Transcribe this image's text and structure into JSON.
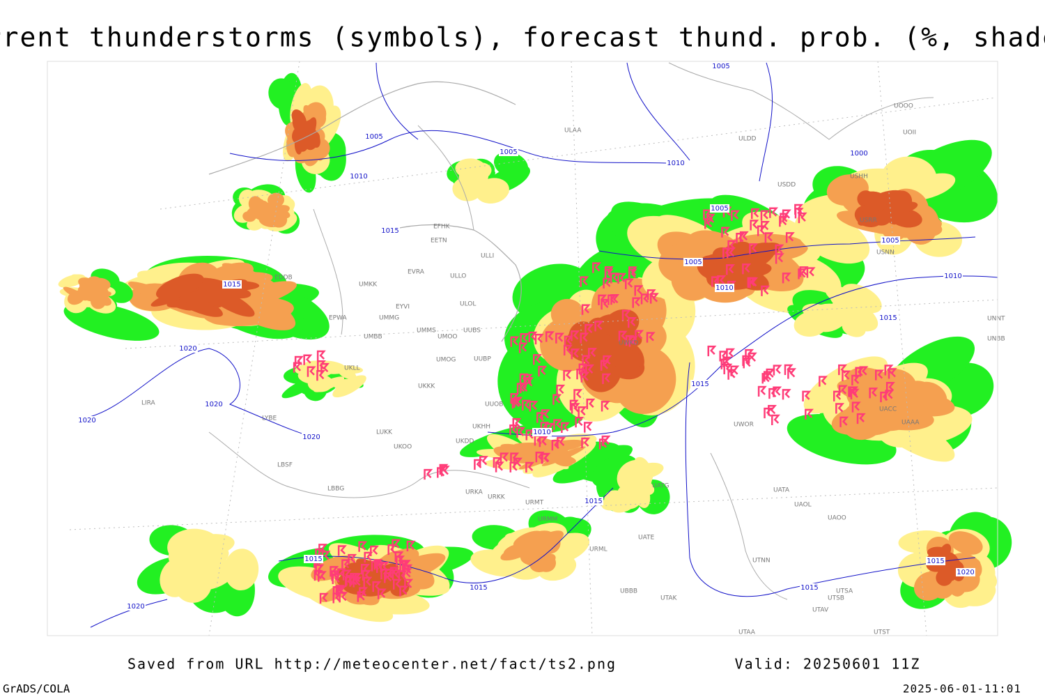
{
  "header": {
    "title": "Current thunderstorms (symbols), forecast thund. prob. (%, shaded)"
  },
  "map": {
    "isobar_labels": [
      "1005",
      "1005",
      "1005",
      "1000",
      "1010",
      "1010",
      "1005",
      "1005",
      "1005",
      "1010",
      "1010",
      "1015",
      "1015",
      "1015",
      "1020",
      "1020",
      "1020",
      "1015",
      "1020",
      "1010",
      "1015",
      "1015",
      "1015",
      "1015",
      "1015",
      "1020",
      "1020"
    ],
    "stations": [
      "EFHK",
      "EETN",
      "EVRA",
      "ULLI",
      "ULOL",
      "UMKK",
      "EYVI",
      "UMMG",
      "EPWA",
      "UMBB",
      "UMMS",
      "UMOO",
      "UUBS",
      "UMOG",
      "UUBP",
      "UKKK",
      "UKLL",
      "UUOB",
      "UKHH",
      "UKDD",
      "UKOO",
      "LUKK",
      "LYBE",
      "LBSF",
      "LBBG",
      "URKK",
      "URKA",
      "URMT",
      "URMM",
      "URML",
      "UATE",
      "UATG",
      "UATA",
      "UAOL",
      "UAOO",
      "UTNN",
      "UBBB",
      "UTAK",
      "UTSA",
      "UTSB",
      "UTAV",
      "UTAA",
      "UTST",
      "UWOR",
      "UAAA",
      "UACC",
      "UNBB",
      "UNNT",
      "ULDD",
      "USDD",
      "UOOO",
      "UOII",
      "USNN",
      "USRR",
      "USHH",
      "UWKD",
      "ULAA",
      "LIRA",
      "EDDB",
      "ULLO"
    ]
  },
  "footer": {
    "source": "Saved from URL http://meteocenter.net/fact/ts2.png",
    "valid": "Valid: 20250601 11Z",
    "software": "GrADS/COLA",
    "timestamp": "2025-06-01-11:01"
  }
}
